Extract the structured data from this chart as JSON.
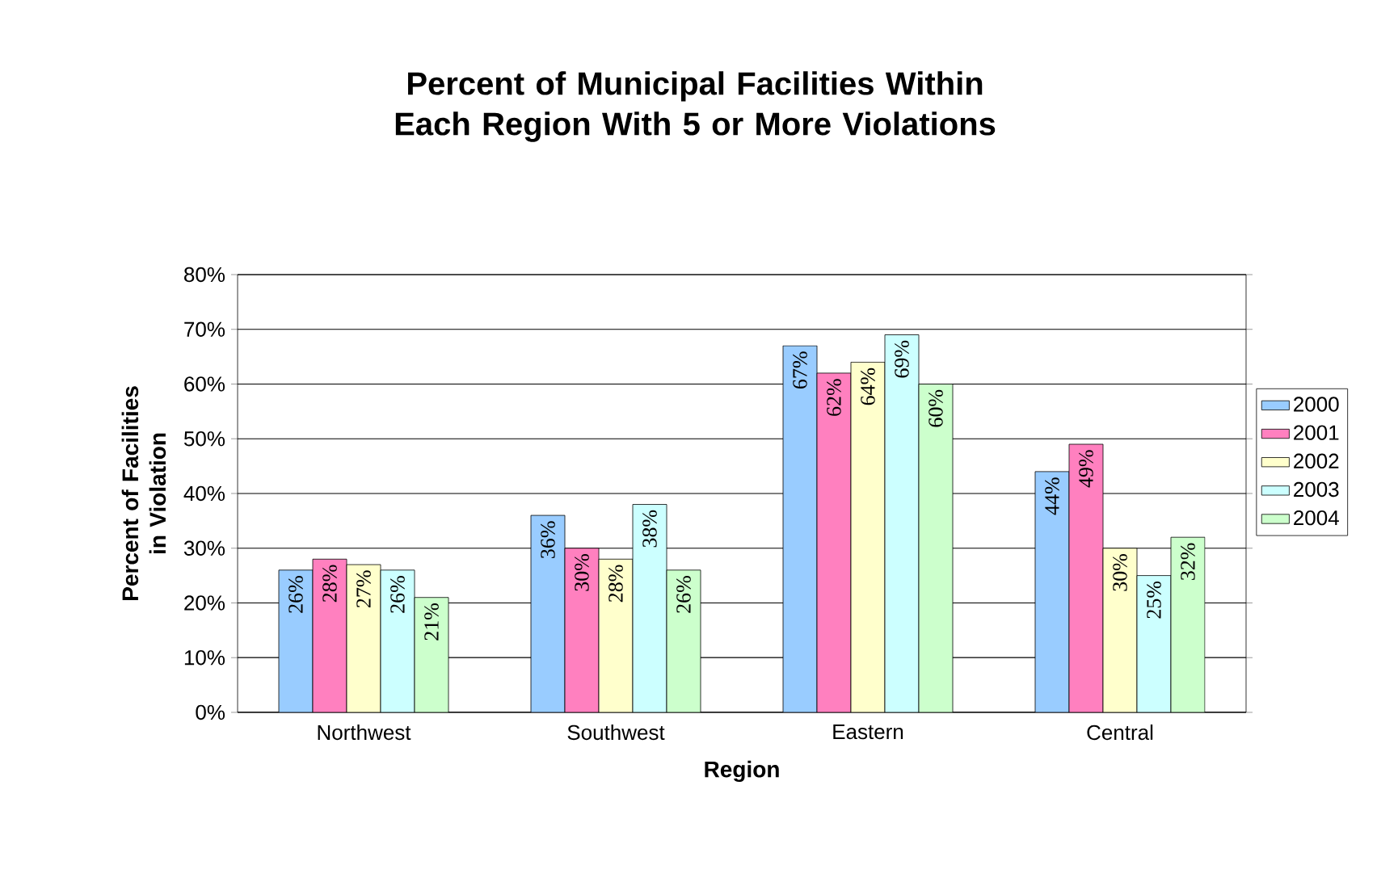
{
  "chart_data": {
    "type": "bar",
    "title": "Percent of Municipal Facilities Within Each Region With 5 or More Violations",
    "xlabel": "Region",
    "ylabel": "Percent of Facilities in Violation",
    "categories": [
      "Northwest",
      "Southwest",
      "Eastern",
      "Central"
    ],
    "series": [
      {
        "name": "2000",
        "color": "#99ccff",
        "values": [
          26,
          36,
          67,
          44
        ],
        "value_labels": [
          "26%",
          "36%",
          "67%",
          "44%"
        ]
      },
      {
        "name": "2001",
        "color": "#ff80bf",
        "values": [
          28,
          30,
          62,
          49
        ],
        "value_labels": [
          "28%",
          "30%",
          "62%",
          "49%"
        ]
      },
      {
        "name": "2002",
        "color": "#ffffcc",
        "values": [
          27,
          28,
          64,
          30
        ],
        "value_labels": [
          "27%",
          "28%",
          "64%",
          "30%"
        ]
      },
      {
        "name": "2003",
        "color": "#ccffff",
        "values": [
          26,
          38,
          69,
          25
        ],
        "value_labels": [
          "26%",
          "38%",
          "69%",
          "25%"
        ]
      },
      {
        "name": "2004",
        "color": "#ccffcc",
        "values": [
          21,
          26,
          60,
          32
        ],
        "value_labels": [
          "21%",
          "26%",
          "60%",
          "32%"
        ]
      }
    ],
    "ylim": [
      0,
      80
    ],
    "yticks": [
      {
        "value": 0,
        "label": "0%"
      },
      {
        "value": 10,
        "label": "10%"
      },
      {
        "value": 20,
        "label": "20%"
      },
      {
        "value": 30,
        "label": "30%"
      },
      {
        "value": 40,
        "label": "40%"
      },
      {
        "value": 50,
        "label": "50%"
      },
      {
        "value": 60,
        "label": "60%"
      },
      {
        "value": 70,
        "label": "70%"
      },
      {
        "value": 80,
        "label": "80%"
      }
    ],
    "grid": "y",
    "legend": "right"
  }
}
